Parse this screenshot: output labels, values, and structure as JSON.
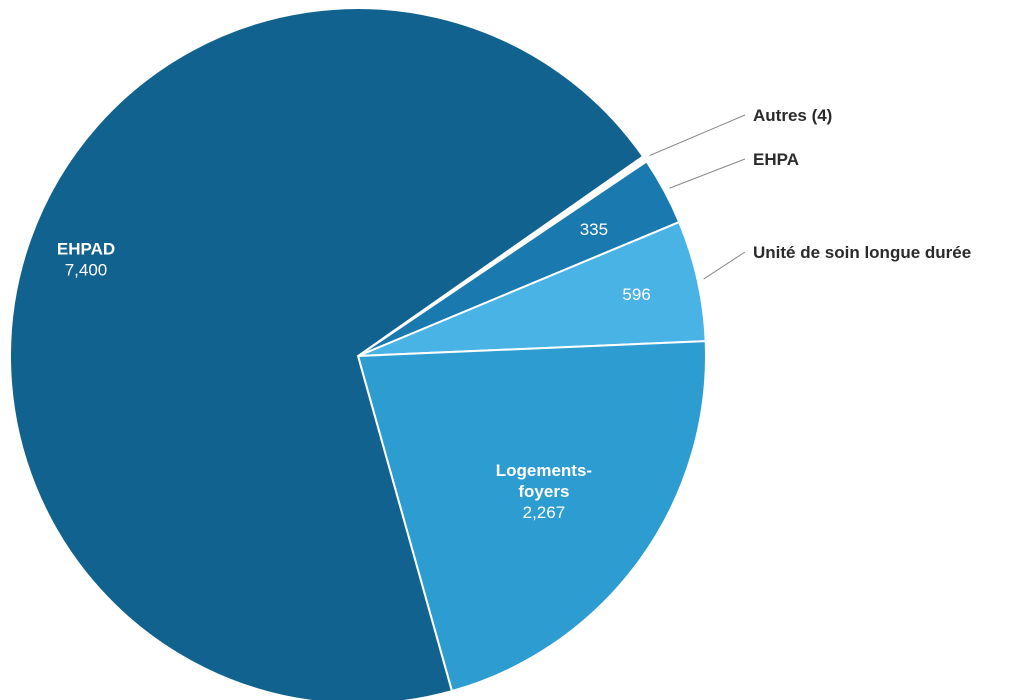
{
  "chart_data": {
    "type": "pie",
    "title": "",
    "start_angle_deg": 35,
    "slices": [
      {
        "name": "Autres (4)",
        "value": 30,
        "color": "#ffffff",
        "value_label": ""
      },
      {
        "name": "EHPA",
        "value": 335,
        "color": "#1a7ab0",
        "value_label": "335"
      },
      {
        "name": "Unité de soin longue durée",
        "value": 596,
        "color": "#4ab3e6",
        "value_label": "596"
      },
      {
        "name": "Logements-foyers",
        "value": 2267,
        "color": "#2d9dd1",
        "value_label": "2,267"
      },
      {
        "name": "EHPAD",
        "value": 7400,
        "color": "#12628f",
        "value_label": "7,400"
      }
    ],
    "inside_name_lines": {
      "Logements-foyers": [
        "Logements-",
        "foyers"
      ],
      "EHPAD": [
        "EHPAD"
      ]
    },
    "outside_labels": [
      "Autres (4)",
      "EHPA",
      "Unité de soin longue durée"
    ]
  }
}
